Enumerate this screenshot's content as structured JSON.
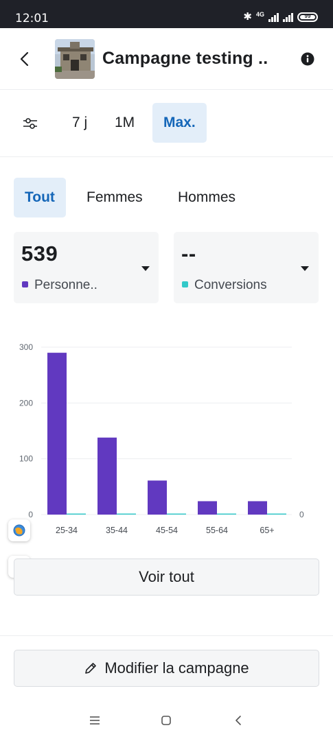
{
  "status_bar": {
    "time": "12:01",
    "network": "4G",
    "battery": "99"
  },
  "header": {
    "title": "Campagne testing ..",
    "back_icon": "chevron-left-icon",
    "info_icon": "info-icon"
  },
  "time_filter": {
    "filter_icon": "sliders-icon",
    "options": [
      "7 j",
      "1M",
      "Max."
    ],
    "selected": "Max."
  },
  "gender_tabs": {
    "tabs": [
      "Tout",
      "Femmes",
      "Hommes"
    ],
    "selected": "Tout"
  },
  "metrics": {
    "left": {
      "value": "539",
      "label": "Personne..",
      "color": "#6139c0"
    },
    "right": {
      "value": "--",
      "label": "Conversions",
      "color": "#33c9c9"
    }
  },
  "chart_data": {
    "type": "bar",
    "categories": [
      "25-34",
      "35-44",
      "45-54",
      "55-64",
      "65+"
    ],
    "series": [
      {
        "values": [
          290,
          138,
          61,
          24,
          24
        ],
        "color": "#6139c0"
      },
      {
        "values": [
          0,
          0,
          0,
          0,
          0
        ],
        "color": "#33c9c9"
      }
    ],
    "y_ticks": [
      "300",
      "200",
      "100",
      "0"
    ],
    "y_right_ticks": [
      "0"
    ],
    "ylim": [
      0,
      300
    ],
    "grid": true
  },
  "actions": {
    "see_all": "Voir tout",
    "edit_campaign": "Modifier la campagne"
  },
  "colors": {
    "accent": "#1466b8",
    "accent_bg": "#e3eef9"
  }
}
